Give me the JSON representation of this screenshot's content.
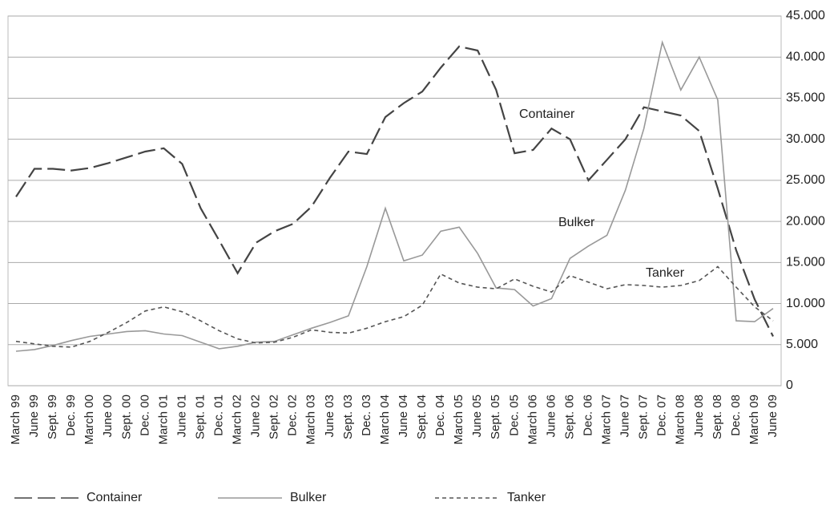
{
  "chart_data": {
    "type": "line",
    "categories": [
      "March 99",
      "June 99",
      "Sept. 99",
      "Dec. 99",
      "March 00",
      "June 00",
      "Sept. 00",
      "Dec. 00",
      "March 01",
      "June 01",
      "Sept. 01",
      "Dec. 01",
      "March 02",
      "June 02",
      "Sept. 02",
      "Dec. 02",
      "March 03",
      "June 03",
      "Sept. 03",
      "Dec. 03",
      "March 04",
      "June 04",
      "Sept. 04",
      "Dec. 04",
      "March 05",
      "June 05",
      "Sept. 05",
      "Dec. 05",
      "March 06",
      "June 06",
      "Sept. 06",
      "Dec. 06",
      "March 07",
      "June 07",
      "Sept. 07",
      "Dec. 07",
      "March 08",
      "June 08",
      "Sept. 08",
      "Dec. 08",
      "March 09",
      "June 09"
    ],
    "series": [
      {
        "name": "Container",
        "color": "#444444",
        "dash": "22 7",
        "values": [
          23000,
          26400,
          26400,
          26200,
          26500,
          27100,
          27800,
          28500,
          28900,
          27000,
          21600,
          17700,
          13700,
          17400,
          18800,
          19700,
          21800,
          25300,
          28500,
          28200,
          32700,
          34400,
          35800,
          38700,
          41300,
          40800,
          36000,
          28300,
          28700,
          31300,
          30000,
          25000,
          27500,
          30000,
          33900,
          33400,
          32900,
          31000,
          24000,
          16500,
          10500,
          6000
        ]
      },
      {
        "name": "Bulker",
        "color": "#999999",
        "dash": "none",
        "values": [
          4200,
          4400,
          4900,
          5500,
          6000,
          6300,
          6600,
          6700,
          6300,
          6100,
          5300,
          4500,
          4800,
          5300,
          5400,
          6200,
          7000,
          7700,
          8500,
          14500,
          21600,
          15200,
          15900,
          18800,
          19300,
          16100,
          11900,
          11700,
          9700,
          10600,
          15500,
          17000,
          18300,
          23800,
          31300,
          41800,
          36000,
          40000,
          34800,
          7900,
          7800,
          9400
        ]
      },
      {
        "name": "Tanker",
        "color": "#555555",
        "dash": "5 4",
        "values": [
          5400,
          5100,
          4800,
          4700,
          5400,
          6500,
          7700,
          9100,
          9600,
          9000,
          7900,
          6700,
          5700,
          5200,
          5300,
          5900,
          6800,
          6500,
          6400,
          7000,
          7800,
          8400,
          9800,
          13600,
          12500,
          12000,
          11800,
          13000,
          12100,
          11400,
          13400,
          12600,
          11800,
          12300,
          12200,
          12000,
          12200,
          12800,
          14500,
          12000,
          9600,
          7900
        ]
      }
    ],
    "annotations": [
      "Container",
      "Bulker",
      "Tanker"
    ],
    "ylim": [
      0,
      45000
    ],
    "yticks": [
      0,
      {
        "value": 5000,
        "label": "5.000"
      },
      {
        "value": 10000,
        "label": "10.000"
      },
      {
        "value": 15000,
        "label": "15.000"
      },
      {
        "value": 20000,
        "label": "20.000"
      },
      {
        "value": 25000,
        "label": "25.000"
      },
      {
        "value": 30000,
        "label": "30.000"
      },
      {
        "value": 35000,
        "label": "35.000"
      },
      {
        "value": 40000,
        "label": "40.000"
      },
      {
        "value": 45000,
        "label": "45.000"
      }
    ],
    "y_axis_side": "right",
    "grid": true
  }
}
